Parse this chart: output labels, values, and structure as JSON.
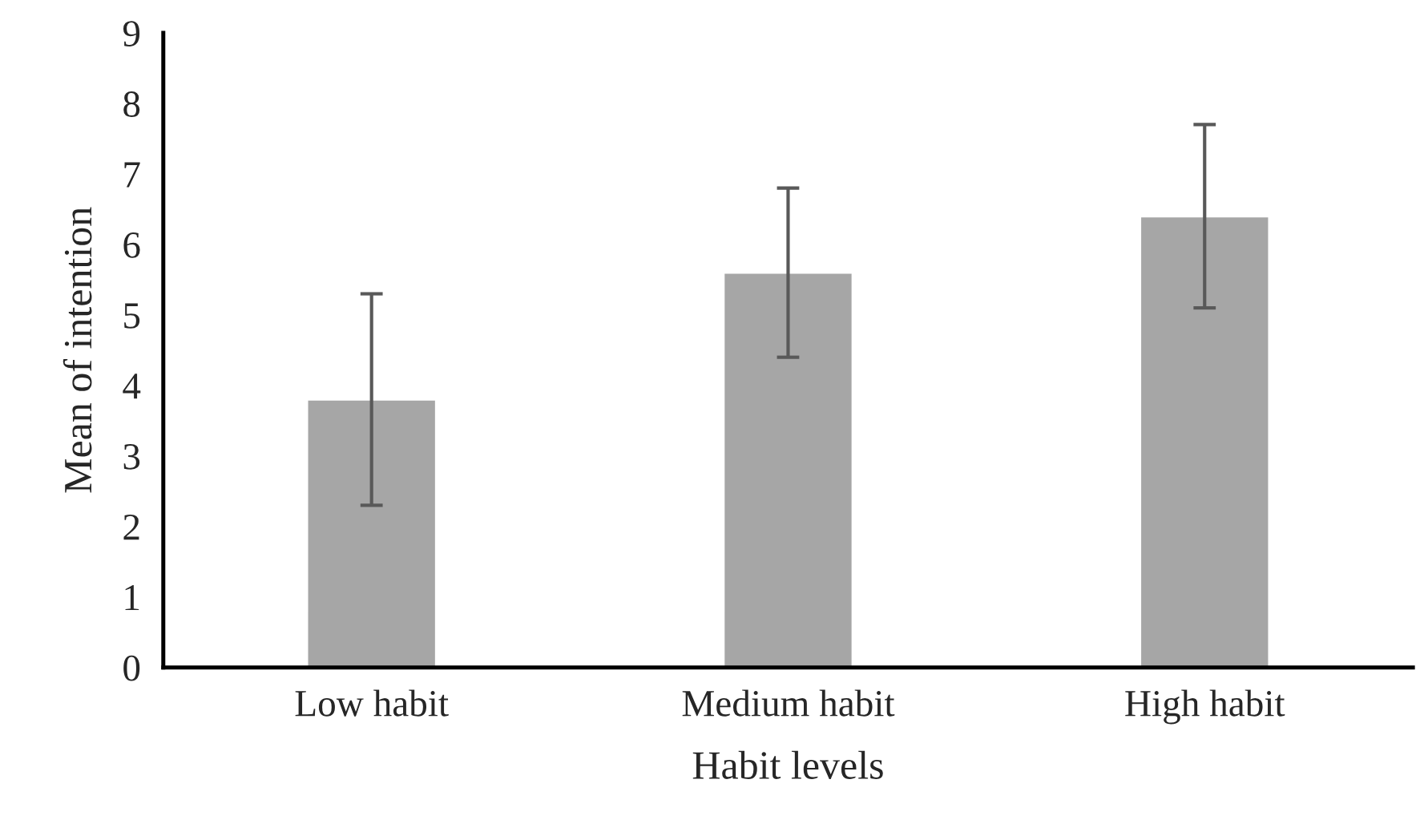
{
  "chart_data": {
    "type": "bar",
    "xlabel": "Habit levels",
    "ylabel": "Mean of intention",
    "categories": [
      "Low habit",
      "Medium habit",
      "High habit"
    ],
    "series": [
      {
        "color": "#a6a6a6",
        "values": [
          3.8,
          5.6,
          6.4
        ],
        "errors": [
          1.5,
          1.2,
          1.3
        ]
      }
    ],
    "ylim": [
      0,
      9
    ],
    "yticks": [
      0,
      1,
      2,
      3,
      4,
      5,
      6,
      7,
      8,
      9
    ],
    "grid": false,
    "legend": false
  }
}
